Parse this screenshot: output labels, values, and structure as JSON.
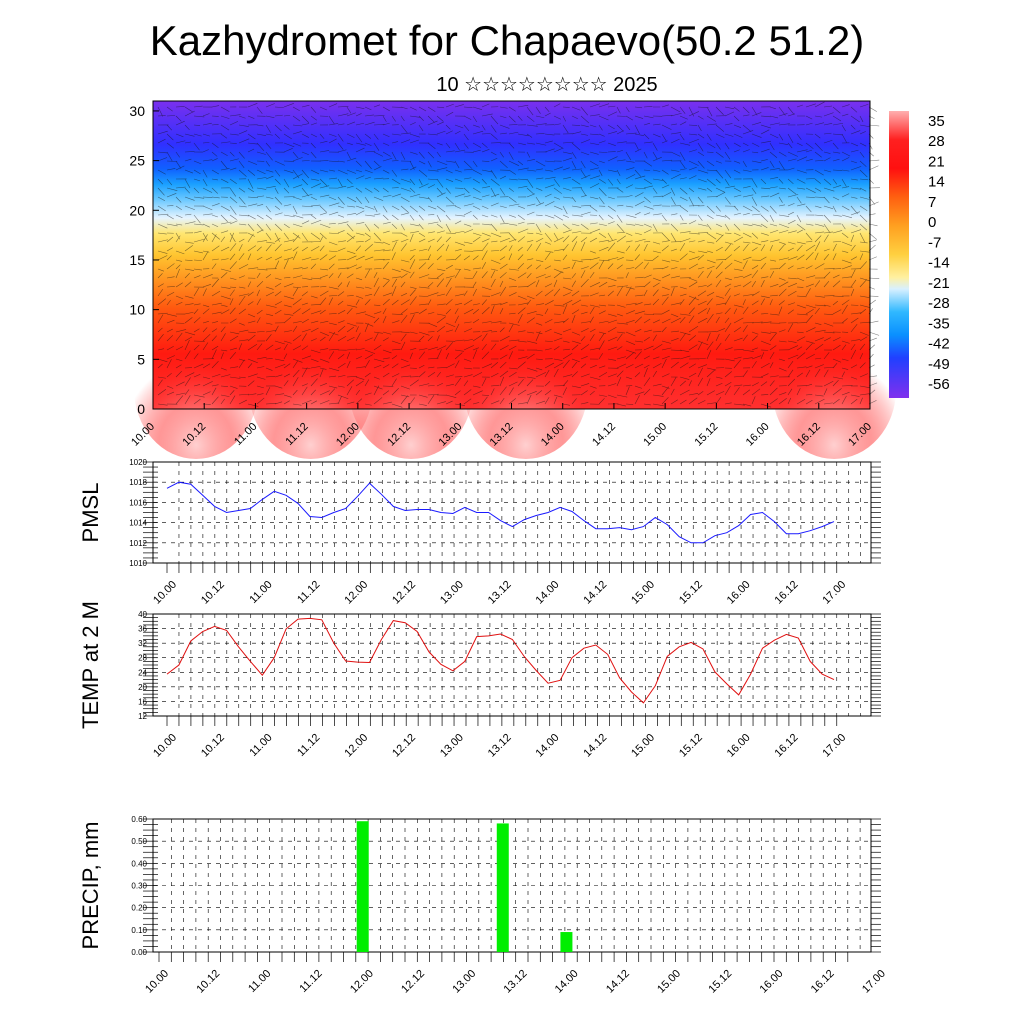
{
  "title": "Kazhydromet for Chapaevo(50.2 51.2)",
  "subtitle": "10 ☆☆☆☆☆☆☆☆ 2025",
  "time_labels": [
    "10.00",
    "10.12",
    "11.00",
    "11.12",
    "12.00",
    "12.12",
    "13.00",
    "13.12",
    "14.00",
    "14.12",
    "15.00",
    "15.12",
    "16.00",
    "16.12",
    "17.00"
  ],
  "colors": {
    "pmsl_line": "#1a1aff",
    "temp_line": "#e01010",
    "precip_bar": "#00ee00"
  },
  "chart_data": [
    {
      "type": "heatmap",
      "title": "Kazhydromet for Chapaevo(50.2 51.2)",
      "subtitle": "10 ☆☆☆☆☆☆☆☆ 2025",
      "x_tick_labels": [
        "10.00",
        "10.12",
        "11.00",
        "11.12",
        "12.00",
        "12.12",
        "13.00",
        "13.12",
        "14.00",
        "14.12",
        "15.00",
        "15.12",
        "16.00",
        "16.12",
        "17.00"
      ],
      "y_ticks": [
        0,
        5,
        10,
        15,
        20,
        25,
        30
      ],
      "ylim": [
        0,
        31
      ],
      "colorbar_labels": [
        "35",
        "28",
        "21",
        "14",
        "7",
        "0",
        "-7",
        "-14",
        "-21",
        "-28",
        "-35",
        "-42",
        "-49",
        "-56"
      ],
      "overlay": "wind vectors",
      "grid": false
    },
    {
      "type": "line",
      "ylabel": "PMSL",
      "x_tick_labels": [
        "10.00",
        "10.12",
        "11.00",
        "11.12",
        "12.00",
        "12.12",
        "13.00",
        "13.12",
        "14.00",
        "14.12",
        "15.00",
        "15.12",
        "16.00",
        "16.12",
        "17.00"
      ],
      "y_ticks": [
        "1010",
        "1012",
        "1014",
        "1016",
        "1018",
        "1020"
      ],
      "ylim": [
        1010,
        1020
      ],
      "grid": true,
      "series": [
        {
          "values": [
            1017.4,
            1018.0,
            1017.8,
            1016.7,
            1015.6,
            1015.0,
            1015.2,
            1015.4,
            1016.3,
            1017.1,
            1016.7,
            1015.9,
            1014.6,
            1014.5,
            1015.0,
            1015.4,
            1016.6,
            1017.9,
            1016.8,
            1015.6,
            1015.2,
            1015.3,
            1015.3,
            1015.0,
            1014.9,
            1015.5,
            1015.0,
            1015.0,
            1014.2,
            1013.6,
            1014.3,
            1014.7,
            1015.0,
            1015.5,
            1015.1,
            1014.2,
            1013.4,
            1013.4,
            1013.5,
            1013.3,
            1013.6,
            1014.5,
            1013.8,
            1012.6,
            1012.0,
            1012.0,
            1012.7,
            1013.0,
            1013.7,
            1014.8,
            1015.0,
            1014.1,
            1012.9,
            1012.9,
            1013.2,
            1013.6,
            1014.1
          ]
        }
      ]
    },
    {
      "type": "line",
      "ylabel": "TEMP at 2 M",
      "x_tick_labels": [
        "10.00",
        "10.12",
        "11.00",
        "11.12",
        "12.00",
        "12.12",
        "13.00",
        "13.12",
        "14.00",
        "14.12",
        "15.00",
        "15.12",
        "16.00",
        "16.12",
        "17.00"
      ],
      "y_ticks": [
        "12",
        "16",
        "20",
        "24",
        "28",
        "32",
        "36",
        "40"
      ],
      "ylim": [
        12,
        40
      ],
      "grid": true,
      "series": [
        {
          "values": [
            23.5,
            26.0,
            32.6,
            35.2,
            36.6,
            35.5,
            31.0,
            27.0,
            23.2,
            28.0,
            35.9,
            38.6,
            38.8,
            38.4,
            32.0,
            27.1,
            26.8,
            26.7,
            33.0,
            38.2,
            37.6,
            35.2,
            29.6,
            26.2,
            24.4,
            27.0,
            33.8,
            34.0,
            34.5,
            33.0,
            28.3,
            24.5,
            21.0,
            21.8,
            28.0,
            30.6,
            31.5,
            28.9,
            22.5,
            18.6,
            15.6,
            20.3,
            28.4,
            31.0,
            32.2,
            30.4,
            24.1,
            20.8,
            17.8,
            23.5,
            30.6,
            32.8,
            34.4,
            33.4,
            27.0,
            23.5,
            22.0
          ]
        }
      ]
    },
    {
      "type": "bar",
      "ylabel": "PRECIP, mm",
      "x_tick_labels": [
        "10.00",
        "10.12",
        "11.00",
        "11.12",
        "12.00",
        "12.12",
        "13.00",
        "13.12",
        "14.00",
        "14.12",
        "15.00",
        "15.12",
        "16.00",
        "16.12",
        "17.00"
      ],
      "y_ticks": [
        "0.00",
        "0.10",
        "0.20",
        "0.30",
        "0.40",
        "0.50",
        "0.60"
      ],
      "ylim": [
        0,
        0.6
      ],
      "grid": true,
      "bars": [
        {
          "time": "12.00",
          "value": 0.59
        },
        {
          "time": "13.09",
          "value": 0.58
        },
        {
          "time": "14.00",
          "value": 0.09
        }
      ]
    }
  ]
}
